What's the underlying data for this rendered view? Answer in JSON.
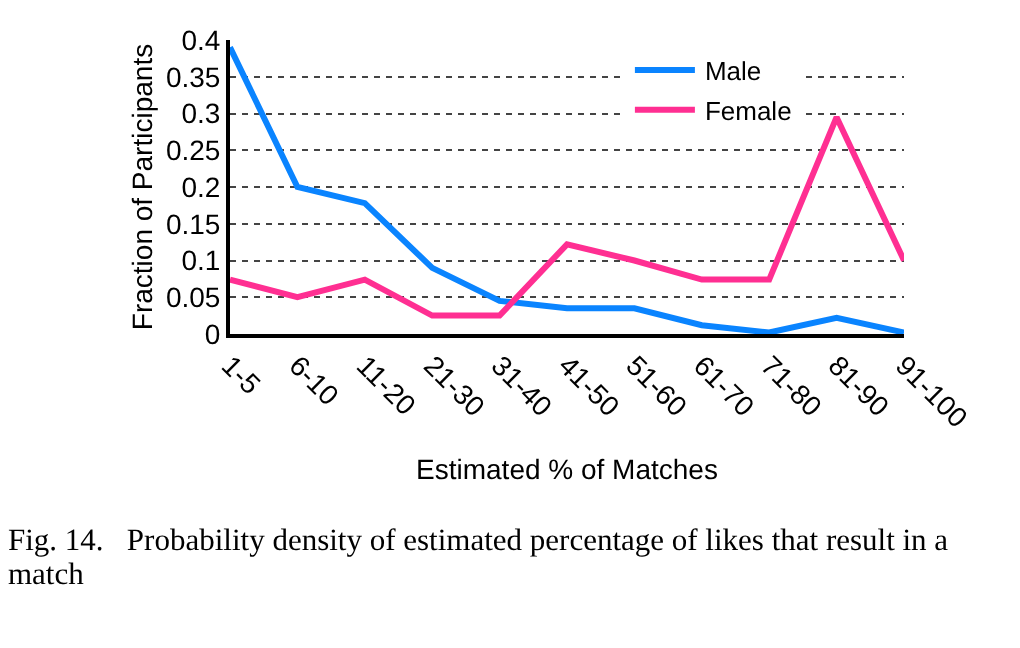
{
  "chart_data": {
    "type": "line",
    "xlabel": "Estimated % of Matches",
    "ylabel": "Fraction of Participants",
    "categories": [
      "1-5",
      "6-10",
      "11-20",
      "21-30",
      "31-40",
      "41-50",
      "51-60",
      "61-70",
      "71-80",
      "81-90",
      "91-100"
    ],
    "series": [
      {
        "name": "Male",
        "color": "#0a84ff",
        "values": [
          0.39,
          0.2,
          0.178,
          0.09,
          0.045,
          0.035,
          0.035,
          0.012,
          0.002,
          0.022,
          0.002
        ]
      },
      {
        "name": "Female",
        "color": "#ff2f92",
        "values": [
          0.074,
          0.05,
          0.074,
          0.025,
          0.025,
          0.122,
          0.1,
          0.074,
          0.074,
          0.295,
          0.1
        ]
      }
    ],
    "ylim": [
      0,
      0.4
    ],
    "yticks": [
      0,
      0.05,
      0.1,
      0.15,
      0.2,
      0.25,
      0.3,
      0.35,
      0.4
    ],
    "grid": "y",
    "legend": "top right",
    "marker": "none",
    "line_style": "solid",
    "annotations": [
      "Fig. 14.   Probability density of estimated percentage of likes that result in a match"
    ]
  }
}
